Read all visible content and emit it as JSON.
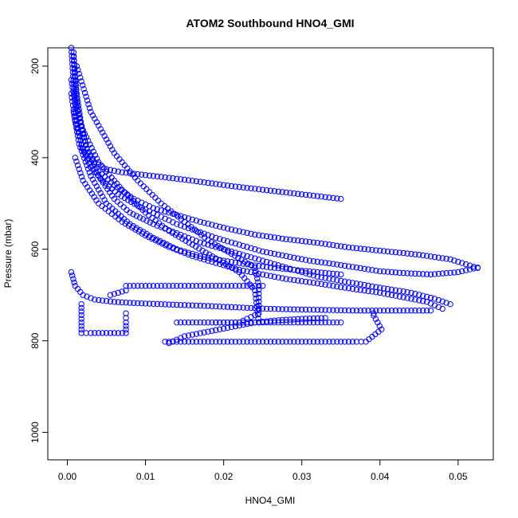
{
  "chart_data": {
    "type": "scatter",
    "title": "ATOM2 Southbound HNO4_GMI",
    "xlabel": "HNO4_GMI",
    "ylabel": "Pressure (mbar)",
    "xlim": [
      -0.0025,
      0.0545
    ],
    "ylim": [
      1060,
      160
    ],
    "x_ticks": [
      0.0,
      0.01,
      0.02,
      0.03,
      0.04,
      0.05
    ],
    "x_tick_labels": [
      "0.00",
      "0.01",
      "0.02",
      "0.03",
      "0.04",
      "0.05"
    ],
    "y_ticks": [
      200,
      400,
      600,
      800,
      1000
    ],
    "y_tick_labels": [
      "200",
      "400",
      "600",
      "800",
      "1000"
    ],
    "grid": false,
    "marker": "open-circle",
    "color": "#0000ff",
    "series": [
      {
        "x": [
          0.0008,
          0.001,
          0.0013,
          0.0018,
          0.0025,
          0.0035,
          0.005,
          0.007,
          0.0095,
          0.012,
          0.015,
          0.018,
          0.021,
          0.024,
          0.027,
          0.03,
          0.033,
          0.035
        ],
        "y": [
          170,
          230,
          290,
          340,
          380,
          410,
          425,
          432,
          437,
          442,
          448,
          455,
          462,
          468,
          474,
          480,
          486,
          490
        ]
      },
      {
        "x": [
          0.0008,
          0.0012,
          0.0018,
          0.0026,
          0.004,
          0.006,
          0.0085,
          0.011,
          0.014,
          0.017,
          0.0205,
          0.024,
          0.028,
          0.032,
          0.036,
          0.0405,
          0.045,
          0.049,
          0.0525
        ],
        "y": [
          180,
          260,
          330,
          390,
          430,
          460,
          490,
          510,
          525,
          540,
          555,
          568,
          578,
          586,
          596,
          604,
          612,
          622,
          641
        ]
      },
      {
        "x": [
          0.0005,
          0.0008,
          0.0012,
          0.0019,
          0.003,
          0.0045,
          0.0065,
          0.009,
          0.0115,
          0.014,
          0.0165,
          0.019,
          0.022,
          0.025,
          0.028,
          0.031,
          0.034,
          0.037,
          0.04,
          0.043,
          0.0465,
          0.05,
          0.0525
        ],
        "y": [
          160,
          240,
          320,
          380,
          420,
          450,
          480,
          505,
          525,
          545,
          560,
          575,
          590,
          605,
          615,
          625,
          632,
          640,
          648,
          652,
          655,
          650,
          640
        ]
      },
      {
        "x": [
          0.001,
          0.002,
          0.004,
          0.007,
          0.01,
          0.013,
          0.016,
          0.019,
          0.022,
          0.025,
          0.028,
          0.031,
          0.034,
          0.037,
          0.04,
          0.043,
          0.046,
          0.048
        ],
        "y": [
          400,
          450,
          500,
          540,
          570,
          595,
          615,
          630,
          645,
          655,
          665,
          672,
          680,
          688,
          695,
          705,
          715,
          730
        ]
      },
      {
        "x": [
          0.0005,
          0.001,
          0.002,
          0.0035,
          0.006,
          0.009,
          0.012,
          0.015,
          0.018,
          0.0205,
          0.023,
          0.0255,
          0.028,
          0.031,
          0.034,
          0.037,
          0.04,
          0.0435,
          0.0465
        ],
        "y": [
          650,
          680,
          700,
          710,
          715,
          718,
          720,
          722,
          724,
          726,
          728,
          730,
          731,
          732,
          733,
          734,
          734,
          734,
          734
        ]
      },
      {
        "x": [
          0.0018,
          0.0018,
          0.0018,
          0.003,
          0.0055,
          0.0075,
          0.0075,
          0.0075
        ],
        "y": [
          720,
          760,
          783,
          783,
          783,
          783,
          760,
          740
        ]
      },
      {
        "x": [
          0.0125,
          0.016,
          0.019,
          0.022,
          0.025,
          0.028,
          0.031,
          0.034,
          0.037,
          0.0382,
          0.0402,
          0.0392,
          0.0392
        ],
        "y": [
          802,
          802,
          802,
          802,
          802,
          802,
          802,
          802,
          802,
          802,
          775,
          745,
          740
        ]
      },
      {
        "x": [
          0.014,
          0.017,
          0.02,
          0.023,
          0.026,
          0.029,
          0.032,
          0.035
        ],
        "y": [
          760,
          760,
          760,
          760,
          760,
          760,
          760,
          760
        ]
      },
      {
        "x": [
          0.0055,
          0.0075,
          0.0075,
          0.01,
          0.013,
          0.016,
          0.019,
          0.022,
          0.025
        ],
        "y": [
          700,
          690,
          680,
          680,
          680,
          680,
          680,
          680,
          680
        ]
      },
      {
        "x": [
          0.0005,
          0.001,
          0.002,
          0.004,
          0.006,
          0.008,
          0.011,
          0.014,
          0.017,
          0.02,
          0.023,
          0.026,
          0.029,
          0.032,
          0.036,
          0.04,
          0.044,
          0.047,
          0.049
        ],
        "y": [
          260,
          320,
          380,
          440,
          490,
          520,
          545,
          565,
          585,
          600,
          615,
          630,
          645,
          660,
          672,
          684,
          695,
          708,
          720
        ]
      },
      {
        "x": [
          0.0008,
          0.0015,
          0.003,
          0.005,
          0.008,
          0.011,
          0.014,
          0.017,
          0.02,
          0.023,
          0.026,
          0.029,
          0.032,
          0.035
        ],
        "y": [
          300,
          370,
          440,
          500,
          545,
          575,
          600,
          615,
          625,
          633,
          640,
          645,
          650,
          655
        ]
      },
      {
        "x": [
          0.013,
          0.015,
          0.018,
          0.021,
          0.024,
          0.027,
          0.03,
          0.033
        ],
        "y": [
          805,
          790,
          780,
          770,
          760,
          755,
          752,
          750
        ]
      },
      {
        "x": [
          0.0012,
          0.003,
          0.006,
          0.009,
          0.012,
          0.015,
          0.018,
          0.021,
          0.024,
          0.0245,
          0.0245,
          0.022,
          0.019
        ],
        "y": [
          200,
          300,
          390,
          450,
          500,
          540,
          580,
          610,
          640,
          680,
          740,
          760,
          760
        ]
      },
      {
        "x": [
          0.0005,
          0.001,
          0.002,
          0.004,
          0.007,
          0.01,
          0.013,
          0.016,
          0.019,
          0.022,
          0.024,
          0.0245
        ],
        "y": [
          230,
          280,
          340,
          410,
          470,
          520,
          560,
          590,
          620,
          650,
          690,
          760
        ]
      }
    ]
  }
}
